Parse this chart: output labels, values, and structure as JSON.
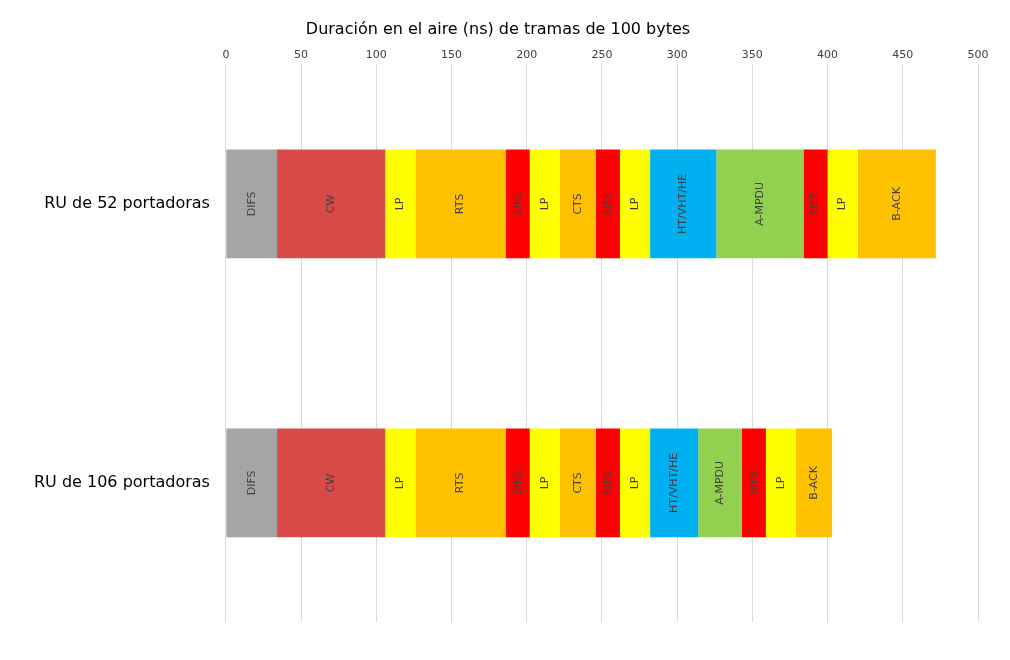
{
  "chart_data": {
    "type": "bar",
    "orientation": "horizontal",
    "stacked": true,
    "title": "Duración en el aire (ns) de tramas de 100 bytes",
    "categories": [
      "RU de 52 portadoras",
      "RU de 106 portadoras"
    ],
    "series": [
      {
        "name": "DIFS",
        "color": "#a5a5a5",
        "values": [
          34,
          34
        ]
      },
      {
        "name": "CW",
        "color": "#d94b48",
        "values": [
          72,
          72
        ]
      },
      {
        "name": "LP",
        "color": "#ffff00",
        "values": [
          20,
          20
        ]
      },
      {
        "name": "RTS",
        "color": "#ffc000",
        "values": [
          60,
          60
        ]
      },
      {
        "name": "SIFS",
        "color": "#ff0000",
        "values": [
          16,
          16
        ]
      },
      {
        "name": "LP",
        "color": "#ffff00",
        "values": [
          20,
          20
        ]
      },
      {
        "name": "CTS",
        "color": "#ffc000",
        "values": [
          24,
          24
        ]
      },
      {
        "name": "SIFS",
        "color": "#ff0000",
        "values": [
          16,
          16
        ]
      },
      {
        "name": "LP",
        "color": "#ffff00",
        "values": [
          20,
          20
        ]
      },
      {
        "name": "HT/VHT/HE",
        "color": "#00b0f0",
        "values": [
          44,
          32
        ]
      },
      {
        "name": "A-MPDU",
        "color": "#92d050",
        "values": [
          58,
          29
        ]
      },
      {
        "name": "SIFS",
        "color": "#ff0000",
        "values": [
          16,
          16
        ]
      },
      {
        "name": "LP",
        "color": "#ffff00",
        "values": [
          20,
          20
        ]
      },
      {
        "name": "B-ACK",
        "color": "#ffc000",
        "values": [
          52,
          24
        ]
      }
    ],
    "xlim": [
      0,
      500
    ],
    "xticks": [
      0,
      50,
      100,
      150,
      200,
      250,
      300,
      350,
      400,
      450,
      500
    ],
    "grid": "x",
    "legend": false
  }
}
